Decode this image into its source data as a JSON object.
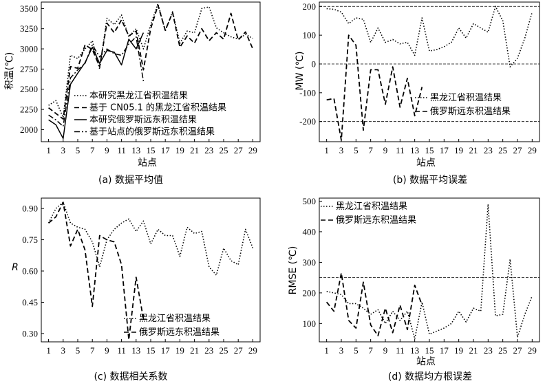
{
  "chart_data": [
    {
      "type": "line",
      "caption": "(a) 数据平均值",
      "xlabel": "站点",
      "ylabel": "积温(℃)",
      "xlim": [
        0,
        30
      ],
      "ylim": [
        1850,
        3580
      ],
      "xticks": [
        1,
        3,
        5,
        7,
        9,
        11,
        13,
        15,
        17,
        19,
        21,
        23,
        25,
        27,
        29
      ],
      "yticks": [
        2000,
        2250,
        2500,
        2750,
        3000,
        3250,
        3500
      ],
      "legend_position": "bottom-right",
      "series": [
        {
          "name": "本研究黑龙江省积温结果",
          "style": "dotted",
          "x": [
            1,
            2,
            3,
            4,
            5,
            6,
            7,
            8,
            9,
            10,
            11,
            12,
            13,
            14,
            15,
            16,
            17,
            18,
            19,
            20,
            21,
            22,
            23,
            24,
            25,
            26,
            27,
            28,
            29
          ],
          "y": [
            2300,
            2360,
            2150,
            2920,
            2880,
            3000,
            3100,
            2750,
            3380,
            3300,
            3420,
            3150,
            3250,
            3000,
            3300,
            3560,
            3220,
            3460,
            3070,
            3220,
            3200,
            3500,
            3520,
            3260,
            3200,
            3150,
            3120,
            3180,
            3130
          ]
        },
        {
          "name": "基于 CN05.1 的黑龙江省积温结果",
          "style": "dashed",
          "x": [
            1,
            2,
            3,
            4,
            5,
            6,
            7,
            8,
            9,
            10,
            11,
            12,
            13,
            14,
            15,
            16,
            17,
            18,
            19,
            20,
            21,
            22,
            23,
            24,
            25,
            26,
            27,
            28,
            29
          ],
          "y": [
            2270,
            2200,
            2130,
            2780,
            2760,
            3050,
            2990,
            2780,
            3320,
            3200,
            3360,
            3160,
            3220,
            2740,
            3250,
            3540,
            3230,
            3450,
            3020,
            3160,
            3070,
            3250,
            3100,
            3200,
            3120,
            3440,
            3110,
            3210,
            3000
          ]
        },
        {
          "name": "本研究俄罗斯远东积温结果",
          "style": "solid",
          "x": [
            1,
            2,
            3,
            4,
            5,
            6,
            7,
            8,
            9,
            10,
            11,
            12,
            13,
            14
          ],
          "y": [
            2120,
            2060,
            1890,
            2560,
            2700,
            2830,
            3020,
            2820,
            2980,
            2960,
            2800,
            3120,
            3000,
            3200
          ]
        },
        {
          "name": "基于站点的俄罗斯远东积温结果",
          "style": "dashdot",
          "x": [
            1,
            2,
            3,
            4,
            5,
            6,
            7,
            8,
            9,
            10,
            11,
            12,
            13,
            14
          ],
          "y": [
            2180,
            2120,
            2040,
            2640,
            2740,
            2820,
            3050,
            2900,
            3000,
            2940,
            2920,
            3060,
            3150,
            2600
          ]
        }
      ]
    },
    {
      "type": "line",
      "caption": "(b) 数据平均误差",
      "xlabel": "站点",
      "ylabel": "MW (℃)",
      "xlim": [
        0,
        30
      ],
      "ylim": [
        -270,
        215
      ],
      "xticks": [
        1,
        3,
        5,
        7,
        9,
        11,
        13,
        15,
        17,
        19,
        21,
        23,
        25,
        27,
        29
      ],
      "yticks": [
        -200,
        -100,
        0,
        100,
        200
      ],
      "reference_lines": [
        -200,
        0,
        200
      ],
      "legend_position": "center-right",
      "series": [
        {
          "name": "黑龙江省积温结果",
          "style": "dotted",
          "x": [
            1,
            2,
            3,
            4,
            5,
            6,
            7,
            8,
            9,
            10,
            11,
            12,
            13,
            14,
            15,
            16,
            17,
            18,
            19,
            20,
            21,
            22,
            23,
            24,
            25,
            26,
            27,
            28,
            29
          ],
          "y": [
            192,
            190,
            180,
            140,
            160,
            155,
            75,
            125,
            75,
            85,
            70,
            75,
            30,
            160,
            45,
            50,
            60,
            75,
            125,
            90,
            140,
            125,
            110,
            200,
            150,
            -10,
            20,
            90,
            180
          ]
        },
        {
          "name": "俄罗斯远东积温结果",
          "style": "dashed",
          "x": [
            1,
            2,
            3,
            4,
            5,
            6,
            7,
            8,
            9,
            10,
            11,
            12,
            13,
            14
          ],
          "y": [
            -125,
            -120,
            -265,
            100,
            65,
            -230,
            -20,
            -20,
            -140,
            -10,
            -150,
            -50,
            -180,
            -80
          ]
        }
      ]
    },
    {
      "type": "line",
      "caption": "(c) 数据相关系数",
      "xlabel": "",
      "ylabel": "R",
      "xlim": [
        0,
        30
      ],
      "ylim": [
        0.26,
        0.95
      ],
      "xticks": [
        1,
        3,
        5,
        7,
        9,
        11,
        13,
        15,
        17,
        19,
        21,
        23,
        25,
        27,
        29
      ],
      "yticks": [
        0.3,
        0.45,
        0.6,
        0.75,
        0.9
      ],
      "legend_position": "bottom-right",
      "series": [
        {
          "name": "黑龙江省积温结果",
          "style": "dotted",
          "x": [
            1,
            2,
            3,
            4,
            5,
            6,
            7,
            8,
            9,
            10,
            11,
            12,
            13,
            14,
            15,
            16,
            17,
            18,
            19,
            20,
            21,
            22,
            23,
            24,
            25,
            26,
            27,
            28,
            29
          ],
          "y": [
            0.83,
            0.9,
            0.93,
            0.83,
            0.81,
            0.8,
            0.74,
            0.62,
            0.75,
            0.8,
            0.83,
            0.85,
            0.79,
            0.84,
            0.73,
            0.8,
            0.77,
            0.77,
            0.67,
            0.81,
            0.78,
            0.79,
            0.62,
            0.58,
            0.71,
            0.65,
            0.63,
            0.8,
            0.71
          ]
        },
        {
          "name": "俄罗斯远东积温结果",
          "style": "dashed",
          "x": [
            1,
            2,
            3,
            4,
            5,
            6,
            7,
            8,
            9,
            10,
            11,
            12,
            13,
            14
          ],
          "y": [
            0.83,
            0.86,
            0.93,
            0.72,
            0.8,
            0.7,
            0.43,
            0.77,
            0.75,
            0.74,
            0.63,
            0.27,
            0.57,
            0.37
          ]
        }
      ]
    },
    {
      "type": "line",
      "caption": "(d) 数据均方根误差",
      "xlabel": "站点",
      "ylabel": "RMSE (℃)",
      "xlim": [
        0,
        30
      ],
      "ylim": [
        40,
        510
      ],
      "xticks": [
        1,
        3,
        5,
        7,
        9,
        11,
        13,
        15,
        17,
        19,
        21,
        23,
        25,
        27,
        29
      ],
      "yticks": [
        100,
        200,
        300,
        400,
        500
      ],
      "reference_lines": [
        250
      ],
      "legend_position": "top-right",
      "series": [
        {
          "name": "黑龙江省积温结果",
          "style": "dotted",
          "x": [
            1,
            2,
            3,
            4,
            5,
            6,
            7,
            8,
            9,
            10,
            11,
            12,
            13,
            14,
            15,
            16,
            17,
            18,
            19,
            20,
            21,
            22,
            23,
            24,
            25,
            26,
            27,
            28,
            29
          ],
          "y": [
            205,
            200,
            195,
            165,
            165,
            150,
            130,
            145,
            100,
            140,
            110,
            140,
            50,
            170,
            65,
            75,
            85,
            100,
            140,
            105,
            150,
            140,
            490,
            125,
            130,
            310,
            55,
            130,
            190
          ]
        },
        {
          "name": "俄罗斯远东积温结果",
          "style": "dashed",
          "x": [
            1,
            2,
            3,
            4,
            5,
            6,
            7,
            8,
            9,
            10,
            11,
            12,
            13,
            14
          ],
          "y": [
            170,
            140,
            265,
            110,
            85,
            235,
            95,
            60,
            150,
            70,
            160,
            80,
            225,
            160
          ]
        }
      ]
    }
  ]
}
